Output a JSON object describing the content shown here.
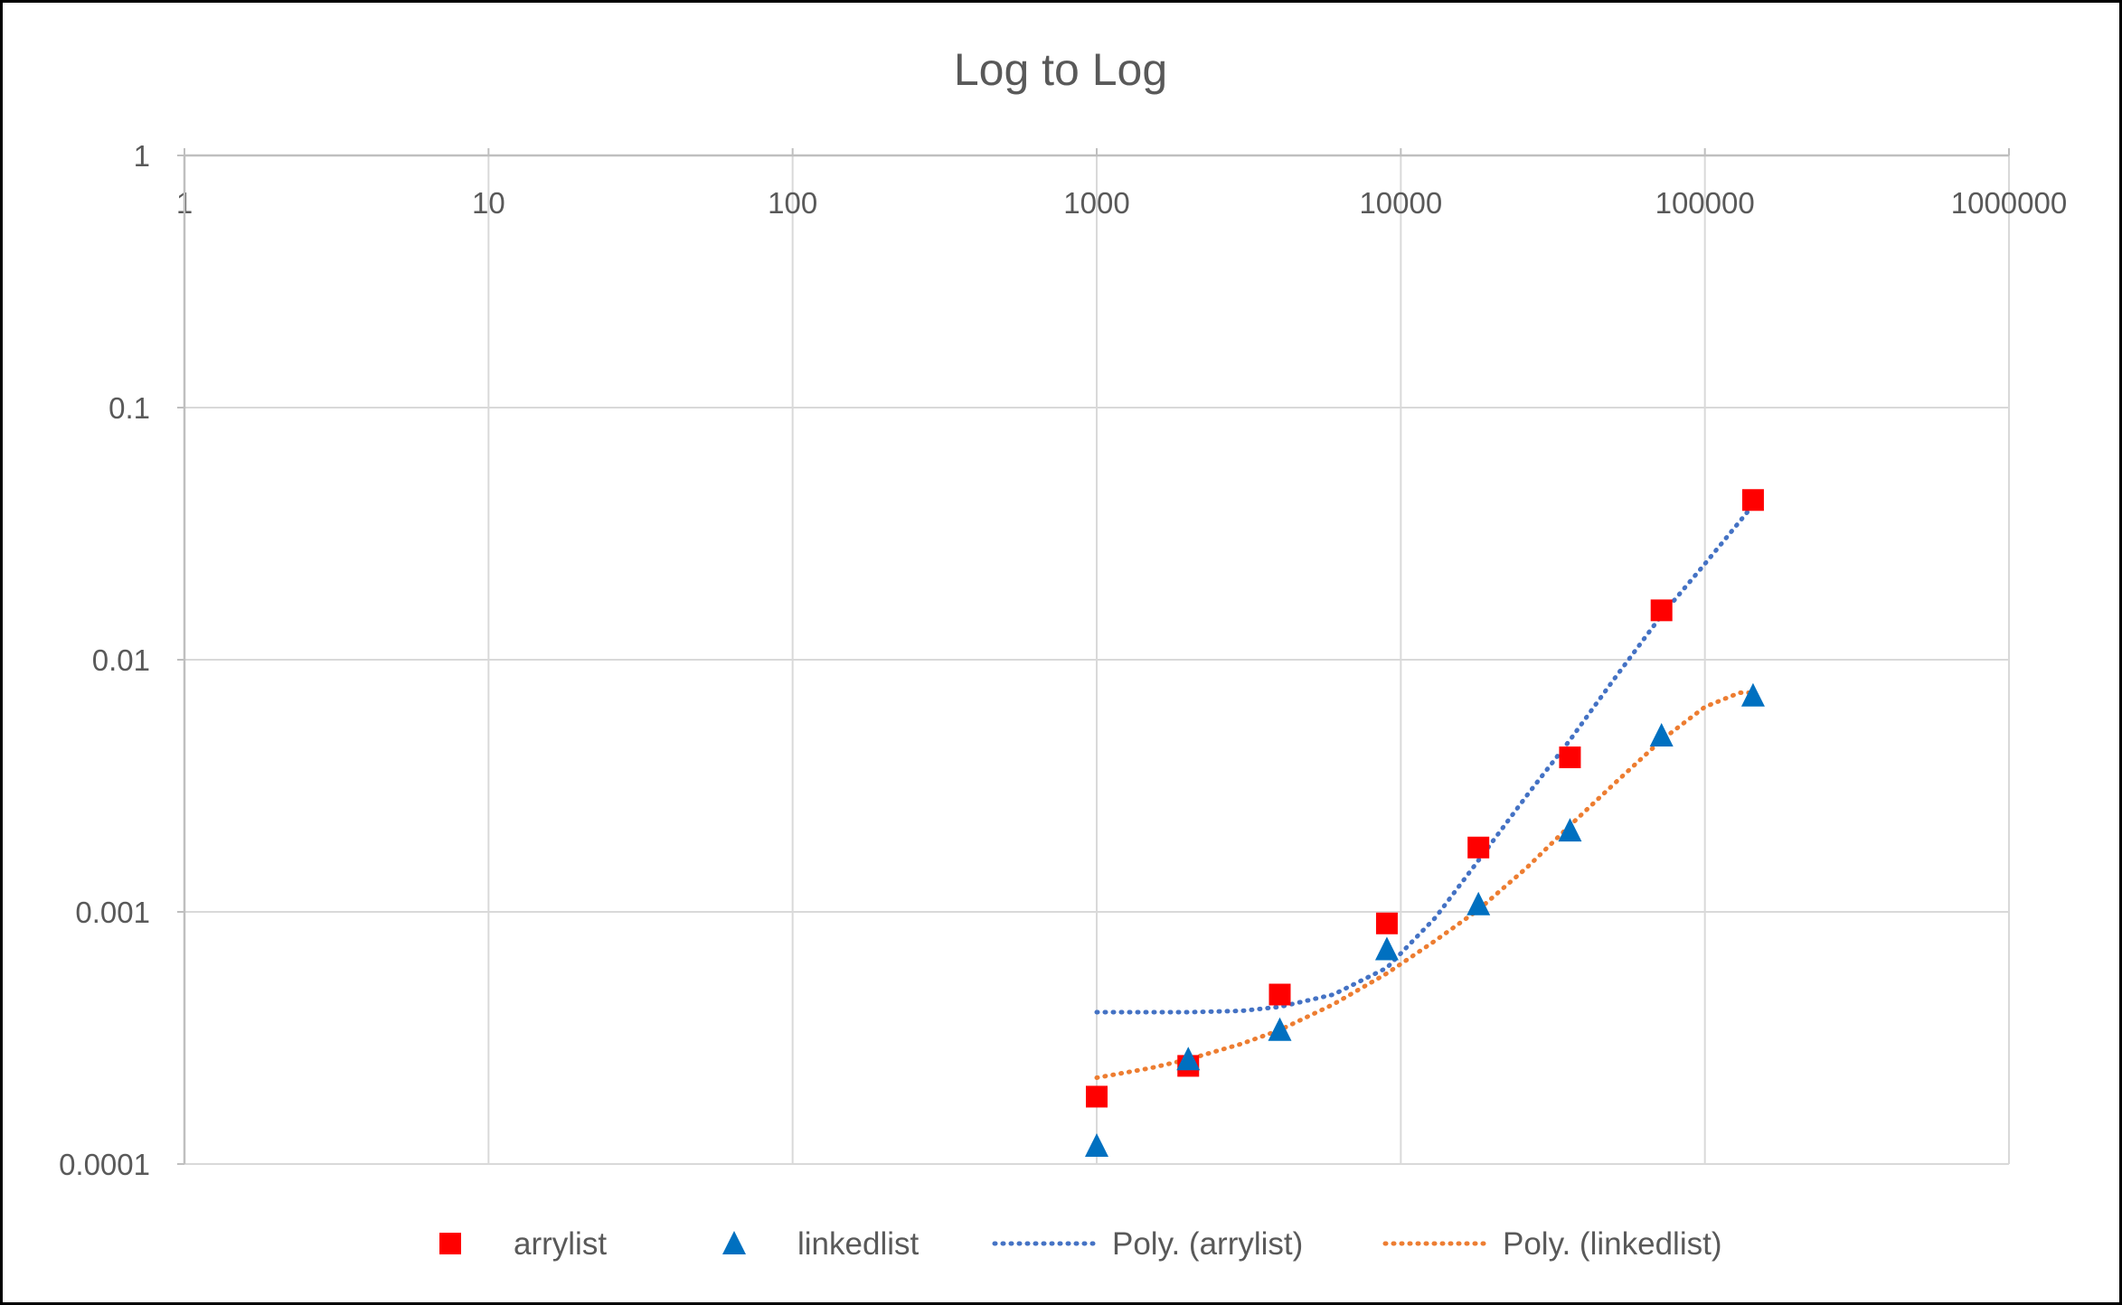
{
  "chart_data": {
    "type": "scatter",
    "title": "Log to Log",
    "xlabel": "",
    "ylabel": "",
    "x_scale": "log",
    "y_scale": "log",
    "xlim": [
      1,
      1000000
    ],
    "ylim": [
      0.0001,
      1
    ],
    "x_ticks": [
      1,
      10,
      100,
      1000,
      10000,
      100000,
      1000000
    ],
    "x_tick_labels": [
      "1",
      "10",
      "100",
      "1000",
      "10000",
      "100000",
      "1000000"
    ],
    "y_ticks": [
      1,
      0.1,
      0.01,
      0.001,
      0.0001
    ],
    "y_tick_labels": [
      "1",
      "0.1",
      "0.01",
      "0.001",
      "0.0001"
    ],
    "grid": true,
    "x_axis_position": "top",
    "legend_position": "bottom",
    "series": [
      {
        "name": "arrylist",
        "type": "scatter",
        "marker": "square",
        "color": "#ff0000",
        "points": [
          [
            1000,
            0.000185
          ],
          [
            2000,
            0.000245
          ],
          [
            4000,
            0.00047
          ],
          [
            9000,
            0.0009
          ],
          [
            18000,
            0.0018
          ],
          [
            36000,
            0.0041
          ],
          [
            72000,
            0.0157
          ],
          [
            144000,
            0.043
          ]
        ]
      },
      {
        "name": "linkedlist",
        "type": "scatter",
        "marker": "triangle",
        "color": "#0070c0",
        "points": [
          [
            1000,
            0.000118
          ],
          [
            2000,
            0.00026
          ],
          [
            4000,
            0.00034
          ],
          [
            9000,
            0.00071
          ],
          [
            18000,
            0.00107
          ],
          [
            36000,
            0.0021
          ],
          [
            72000,
            0.005
          ],
          [
            144000,
            0.0072
          ]
        ]
      },
      {
        "name": "Poly. (arrylist)",
        "type": "line",
        "style": "dotted",
        "color": "#4472c4",
        "points": [
          [
            1000,
            0.0004
          ],
          [
            1500,
            0.0004
          ],
          [
            2000,
            0.0004
          ],
          [
            3000,
            0.000405
          ],
          [
            4000,
            0.00042
          ],
          [
            6000,
            0.00047
          ],
          [
            9000,
            0.0006
          ],
          [
            13000,
            0.00095
          ],
          [
            18000,
            0.0016
          ],
          [
            26000,
            0.0029
          ],
          [
            36000,
            0.0048
          ],
          [
            50000,
            0.0083
          ],
          [
            72000,
            0.015
          ],
          [
            100000,
            0.024
          ],
          [
            144000,
            0.041
          ]
        ]
      },
      {
        "name": "Poly. (linkedlist)",
        "type": "line",
        "style": "dotted",
        "color": "#ed7d31",
        "points": [
          [
            1000,
            0.00022
          ],
          [
            1500,
            0.00024
          ],
          [
            2000,
            0.00026
          ],
          [
            3000,
            0.0003
          ],
          [
            4000,
            0.00034
          ],
          [
            6000,
            0.00043
          ],
          [
            9000,
            0.00057
          ],
          [
            13000,
            0.00077
          ],
          [
            18000,
            0.00102
          ],
          [
            26000,
            0.0015
          ],
          [
            36000,
            0.0022
          ],
          [
            50000,
            0.0032
          ],
          [
            72000,
            0.0048
          ],
          [
            100000,
            0.0065
          ],
          [
            130000,
            0.0074
          ],
          [
            144000,
            0.0074
          ]
        ]
      }
    ]
  }
}
